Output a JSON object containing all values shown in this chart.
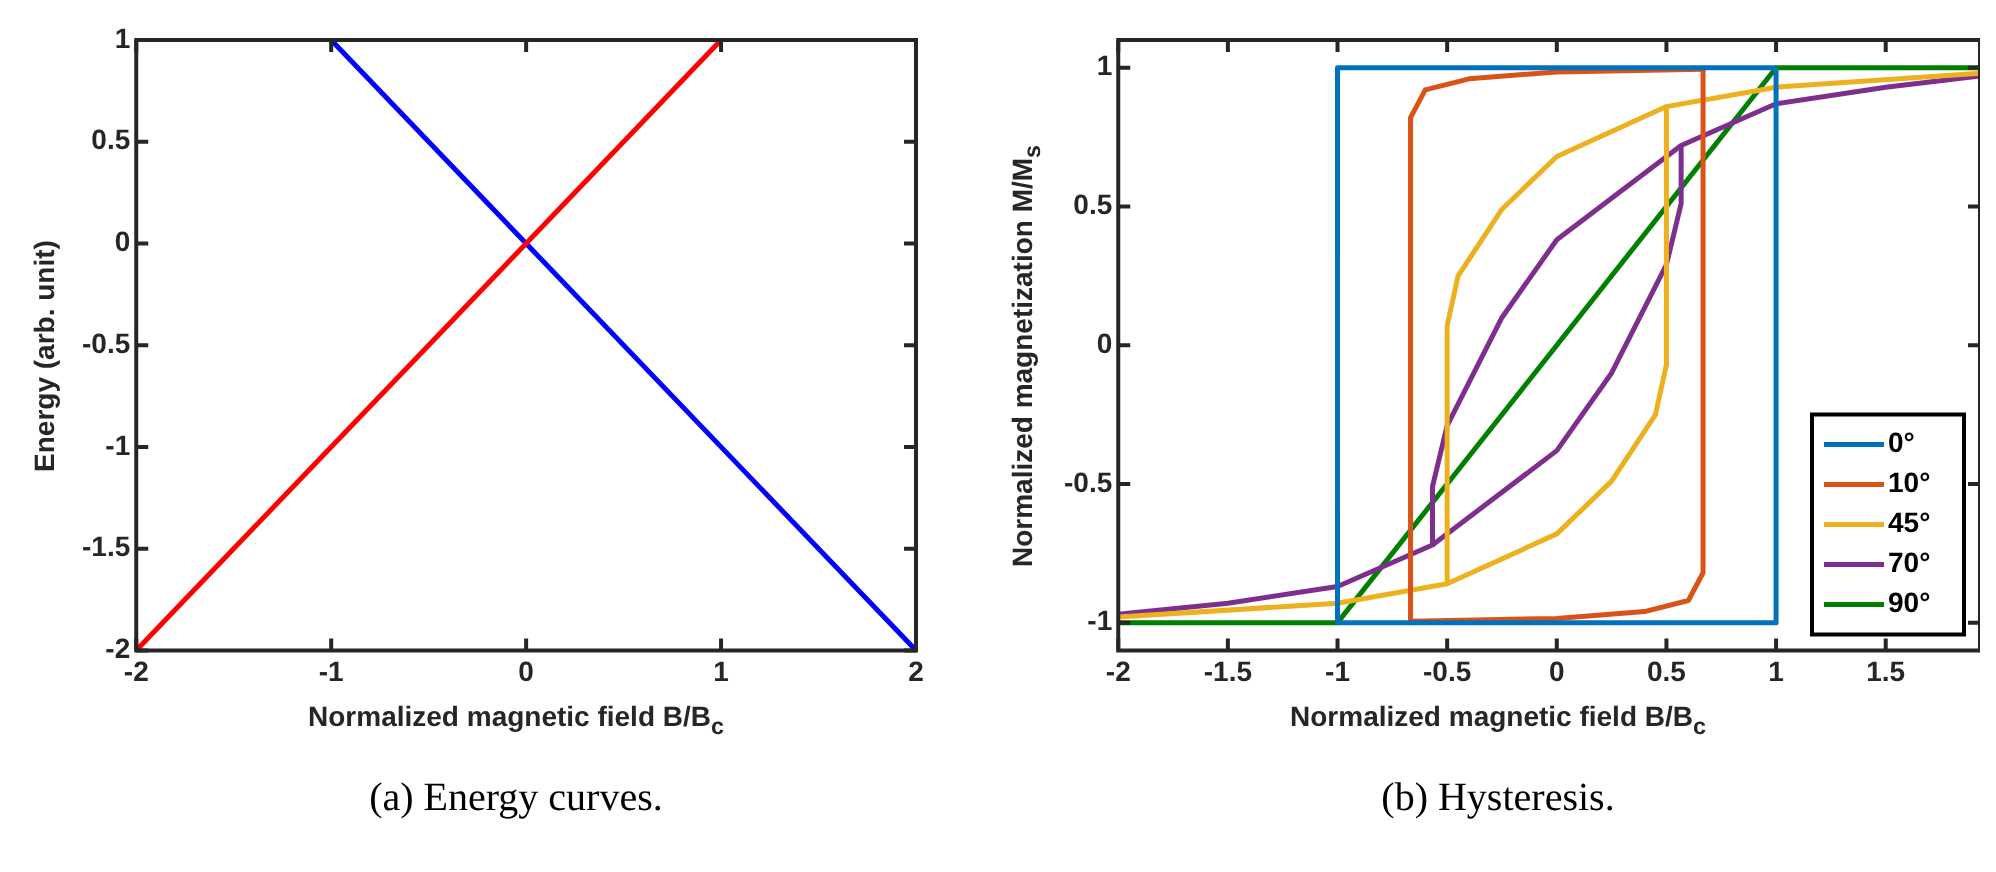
{
  "chart_data": [
    {
      "type": "line",
      "xlabel": "Normalized magnetic field B/B$_{c}$",
      "ylabel": "Energy (arb. unit)",
      "annotations": [
        "(a) Energy curves."
      ],
      "xlim": [
        -2,
        2
      ],
      "xticks": [
        -2,
        -1,
        0,
        1,
        2
      ],
      "ylim": [
        -2,
        1
      ],
      "yticks": [
        -2,
        -1.5,
        -1,
        -0.5,
        0,
        0.5,
        1
      ],
      "grid": false,
      "legend": false,
      "series": [
        {
          "color": "#ff0000",
          "x": [
            -2,
            1
          ],
          "values": [
            -2,
            1
          ]
        },
        {
          "color": "#0000ff",
          "x": [
            -1,
            2
          ],
          "values": [
            1,
            -2
          ]
        }
      ]
    },
    {
      "type": "line",
      "xlabel": "Normalized magnetic field B/B$_{c}$",
      "ylabel": "Normalized magnetization M/M$_{s}$",
      "annotations": [
        "(b) Hysteresis."
      ],
      "xlim": [
        -2,
        1.93
      ],
      "xticks": [
        -2,
        -1.5,
        -1,
        -0.5,
        0,
        0.5,
        1,
        1.5
      ],
      "ylim": [
        -1.1,
        1.1
      ],
      "yticks": [
        -1,
        -0.5,
        0,
        0.5,
        1
      ],
      "grid": false,
      "legend": "bottom right",
      "series": [
        {
          "name": "0°",
          "color": "#0072bd",
          "x": [
            -1,
            1,
            1
          ],
          "values": [
            -1,
            -1,
            1
          ]
        },
        {
          "color": "#0072bd",
          "x": [
            1,
            -1,
            -1
          ],
          "values": [
            1,
            1,
            -1
          ]
        },
        {
          "name": "10°",
          "color": "#d95319",
          "x": [
            -0.667,
            0,
            0.4,
            0.6,
            0.667,
            0.667
          ],
          "values": [
            -0.995,
            -0.985,
            -0.96,
            -0.92,
            -0.82,
            1
          ]
        },
        {
          "color": "#d95319",
          "x": [
            0.667,
            0,
            -0.4,
            -0.6,
            -0.667,
            -0.667
          ],
          "values": [
            0.995,
            0.985,
            0.96,
            0.92,
            0.82,
            -1
          ]
        },
        {
          "name": "45°",
          "color": "#edb120",
          "x": [
            -0.5,
            0,
            0.25,
            0.45,
            0.5,
            0.5,
            1,
            1.93
          ],
          "values": [
            -0.86,
            -0.68,
            -0.49,
            -0.25,
            -0.07,
            0.86,
            0.93,
            0.98
          ]
        },
        {
          "color": "#edb120",
          "x": [
            0.5,
            0,
            -0.25,
            -0.45,
            -0.5,
            -0.5,
            -1,
            -2
          ],
          "values": [
            0.86,
            0.68,
            0.49,
            0.25,
            0.07,
            -0.86,
            -0.93,
            -0.98
          ]
        },
        {
          "name": "70°",
          "color": "#7e2f8e",
          "x": [
            -0.567,
            0,
            0.25,
            0.5,
            0.567,
            0.567,
            1,
            1.5,
            1.93
          ],
          "values": [
            -0.72,
            -0.38,
            -0.1,
            0.29,
            0.51,
            0.72,
            0.87,
            0.93,
            0.97
          ]
        },
        {
          "color": "#7e2f8e",
          "x": [
            0.567,
            0,
            -0.25,
            -0.5,
            -0.567,
            -0.567,
            -1,
            -1.5,
            -2
          ],
          "values": [
            0.72,
            0.38,
            0.1,
            -0.29,
            -0.51,
            -0.72,
            -0.87,
            -0.93,
            -0.97
          ]
        },
        {
          "name": "90°",
          "color": "#008000",
          "x": [
            -2,
            -1,
            1,
            1.93
          ],
          "values": [
            -1,
            -1,
            1,
            1
          ]
        }
      ]
    }
  ]
}
